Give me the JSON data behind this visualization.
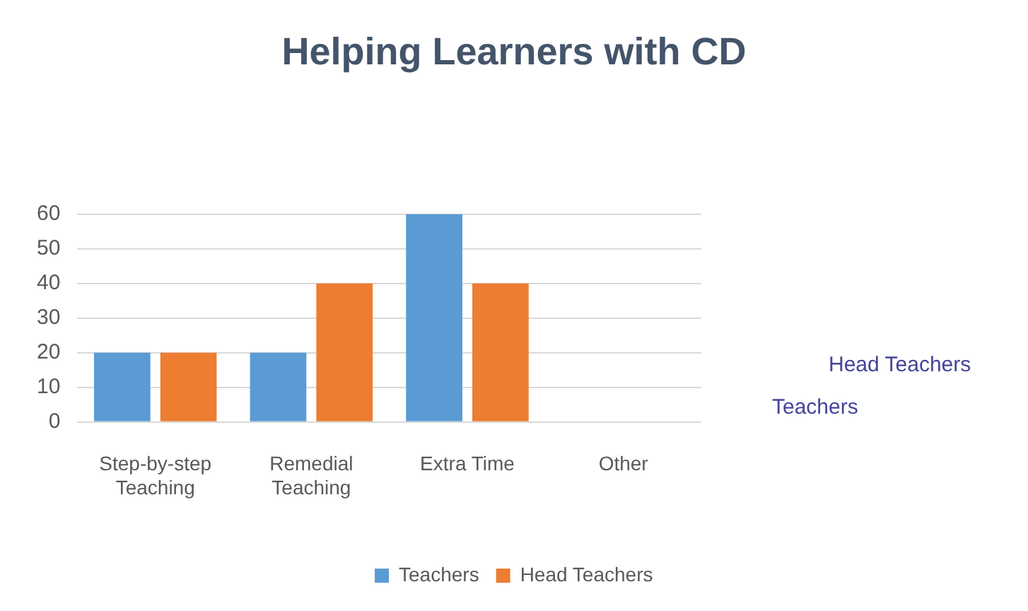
{
  "chart_data": {
    "type": "bar",
    "title": "Helping Learners with CD",
    "categories": [
      "Step-by-step Teaching",
      "Remedial Teaching",
      "Extra Time",
      "Other"
    ],
    "series": [
      {
        "name": "Teachers",
        "color": "#5b9bd5",
        "values": [
          20,
          20,
          60,
          0
        ]
      },
      {
        "name": "Head Teachers",
        "color": "#ed7d31",
        "values": [
          20,
          40,
          40,
          0
        ]
      }
    ],
    "ylim": [
      0,
      60
    ],
    "yticks": [
      0,
      10,
      20,
      30,
      40,
      50,
      60
    ],
    "grid": "y",
    "legend": "bottom"
  }
}
